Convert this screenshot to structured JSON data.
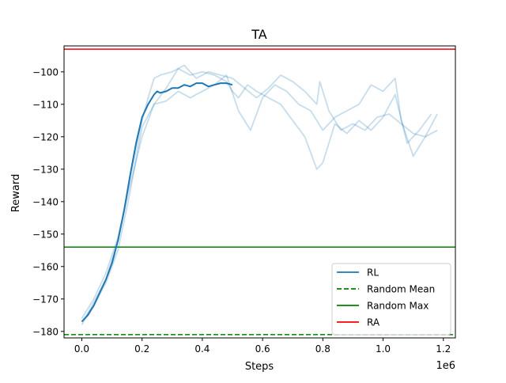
{
  "chart_data": {
    "type": "line",
    "title": "TA",
    "xlabel": "Steps",
    "ylabel": "Reward",
    "x_offset_label": "1e6",
    "xlim": [
      -0.059,
      1.24
    ],
    "ylim": [
      -182,
      -92
    ],
    "x_ticks": [
      0.0,
      0.2,
      0.4,
      0.6,
      0.8,
      1.0,
      1.2
    ],
    "x_tick_labels": [
      "0.0",
      "0.2",
      "0.4",
      "0.6",
      "0.8",
      "1.0",
      "1.2"
    ],
    "y_ticks": [
      -180,
      -170,
      -160,
      -150,
      -140,
      -130,
      -120,
      -110,
      -100
    ],
    "y_tick_labels": [
      "−180",
      "−170",
      "−160",
      "−150",
      "−140",
      "−130",
      "−120",
      "−110",
      "−100"
    ],
    "grid": false,
    "legend_position": "lower-right",
    "colors": {
      "rl": "#1f77b4",
      "random_mean": "#008000",
      "random_max": "#008000",
      "ra": "#ff0000"
    },
    "series": [
      {
        "name": "RL",
        "style": "solid",
        "x": [
          0.0,
          0.02,
          0.04,
          0.06,
          0.08,
          0.1,
          0.12,
          0.14,
          0.16,
          0.18,
          0.2,
          0.22,
          0.24,
          0.25,
          0.26,
          0.28,
          0.3,
          0.32,
          0.34,
          0.36,
          0.38,
          0.4,
          0.42,
          0.44,
          0.46,
          0.48,
          0.5
        ],
        "y": [
          -177,
          -175,
          -172,
          -168,
          -164,
          -159,
          -152,
          -143,
          -132,
          -122,
          -114,
          -110,
          -107,
          -106,
          -106.5,
          -106,
          -105,
          -105,
          -104,
          -104.5,
          -103.5,
          -103.5,
          -104.5,
          -104,
          -103.5,
          -103.5,
          -104
        ]
      },
      {
        "name": "",
        "style": "faint",
        "x": [
          0.0,
          0.04,
          0.08,
          0.12,
          0.16,
          0.2,
          0.22,
          0.24,
          0.26,
          0.3,
          0.34,
          0.38,
          0.42,
          0.46,
          0.5,
          0.54,
          0.58,
          0.62,
          0.66,
          0.7,
          0.74,
          0.78,
          0.79,
          0.82,
          0.86,
          0.9,
          0.94,
          0.98,
          1.02,
          1.06,
          1.1,
          1.14,
          1.18
        ],
        "y": [
          -178,
          -171,
          -164,
          -152,
          -133,
          -115,
          -108,
          -102,
          -101,
          -100,
          -98,
          -102,
          -100,
          -101,
          -102,
          -105,
          -108,
          -105,
          -101,
          -103,
          -106,
          -110,
          -103,
          -112,
          -118,
          -116,
          -118,
          -114,
          -113,
          -116,
          -119,
          -120,
          -118
        ]
      },
      {
        "name": "",
        "style": "faint",
        "x": [
          0.0,
          0.04,
          0.08,
          0.12,
          0.16,
          0.2,
          0.24,
          0.28,
          0.32,
          0.36,
          0.4,
          0.44,
          0.48,
          0.5,
          0.52,
          0.55,
          0.58,
          0.62,
          0.66,
          0.7,
          0.74,
          0.76,
          0.78,
          0.8,
          0.84,
          0.88,
          0.92,
          0.96,
          1.0,
          1.04,
          1.08,
          1.12,
          1.16
        ],
        "y": [
          -176,
          -170,
          -162,
          -151,
          -135,
          -120,
          -110,
          -105,
          -99,
          -101,
          -100,
          -101,
          -103,
          -106,
          -108,
          -104,
          -106,
          -108,
          -110,
          -115,
          -120,
          -125,
          -130,
          -128,
          -116,
          -119,
          -115,
          -118,
          -114,
          -107,
          -122,
          -118,
          -113
        ]
      },
      {
        "name": "",
        "style": "faint",
        "x": [
          0.0,
          0.04,
          0.08,
          0.12,
          0.16,
          0.2,
          0.24,
          0.28,
          0.32,
          0.36,
          0.4,
          0.44,
          0.48,
          0.52,
          0.56,
          0.6,
          0.64,
          0.68,
          0.72,
          0.76,
          0.8,
          0.84,
          0.88,
          0.92,
          0.96,
          1.0,
          1.04,
          1.06,
          1.1,
          1.14,
          1.18
        ],
        "y": [
          -177,
          -172,
          -165,
          -155,
          -137,
          -117,
          -110,
          -109,
          -106,
          -108,
          -106,
          -104,
          -101,
          -112,
          -118,
          -108,
          -104,
          -106,
          -110,
          -112,
          -118,
          -114,
          -112,
          -110,
          -104,
          -106,
          -102,
          -115,
          -126,
          -120,
          -113
        ]
      },
      {
        "name": "Random Mean",
        "style": "dashed",
        "y": -181
      },
      {
        "name": "Random Max",
        "style": "solid",
        "y": -154
      },
      {
        "name": "RA",
        "style": "solid",
        "y": -93
      }
    ]
  }
}
